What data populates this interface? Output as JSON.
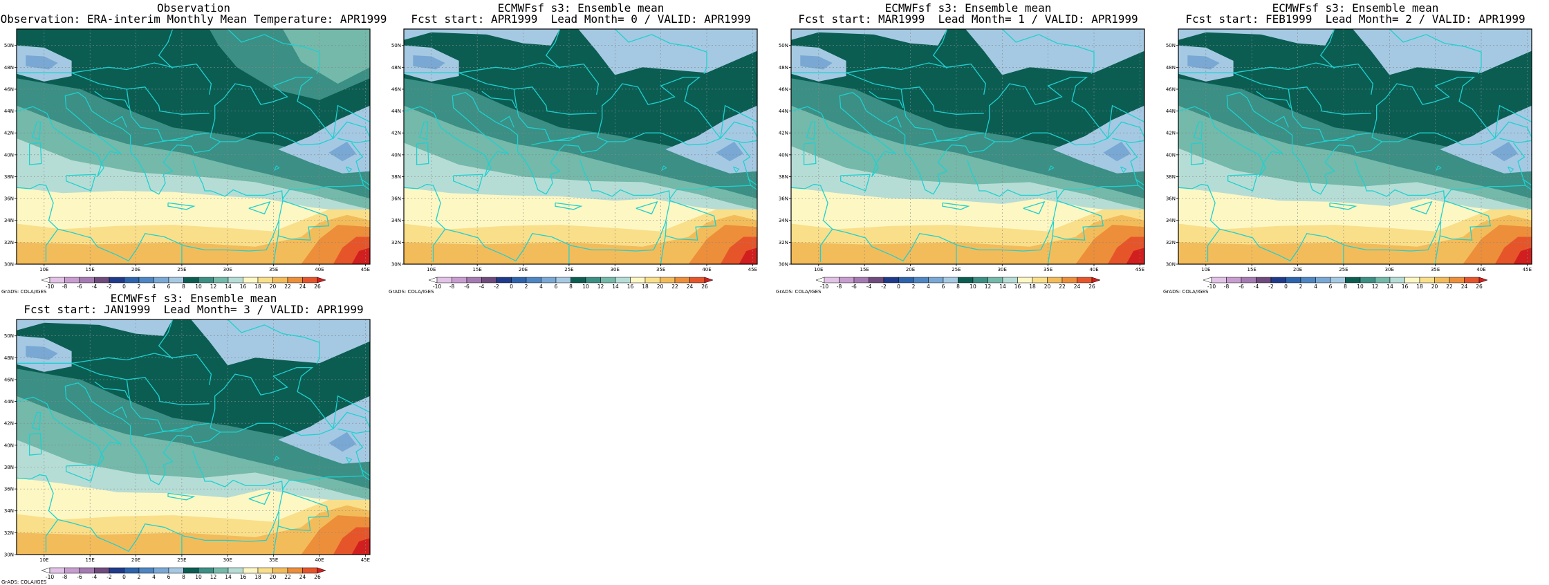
{
  "panels": [
    {
      "title1": "Observation",
      "title2": "Observation: ERA-interim Monthly Mean Temperature: APR1999",
      "variant": 0
    },
    {
      "title1": "ECMWFsf s3: Ensemble mean",
      "title2": "Fcst start: APR1999  Lead Month= 0 / VALID: APR1999",
      "variant": 1
    },
    {
      "title1": "ECMWFsf s3: Ensemble mean",
      "title2": "Fcst start: MAR1999  Lead Month= 1 / VALID: APR1999",
      "variant": 2
    },
    {
      "title1": "ECMWFsf s3: Ensemble mean",
      "title2": "Fcst start: FEB1999  Lead Month= 2 / VALID: APR1999",
      "variant": 3
    },
    {
      "title1": "ECMWFsf s3: Ensemble mean",
      "title2": "Fcst start: JAN1999  Lead Month= 3 / VALID: APR1999",
      "variant": 4
    }
  ],
  "lon_labels": [
    "10E",
    "15E",
    "20E",
    "25E",
    "30E",
    "35E",
    "40E",
    "45E"
  ],
  "lat_labels": [
    "30N",
    "32N",
    "34N",
    "36N",
    "38N",
    "40N",
    "42N",
    "44N",
    "46N",
    "48N",
    "50N"
  ],
  "colorbar": {
    "labels": [
      "-10",
      "-8",
      "-6",
      "-4",
      "-2",
      "0",
      "2",
      "4",
      "6",
      "8",
      "10",
      "12",
      "14",
      "16",
      "18",
      "20",
      "22",
      "24",
      "26"
    ],
    "colors": [
      "#ffffff",
      "#e2c2e6",
      "#c79ccf",
      "#a57ab3",
      "#6e4a7d",
      "#1f3a8a",
      "#2c63ab",
      "#4d86c2",
      "#79a8d4",
      "#a5c9e3",
      "#0b5d52",
      "#3b8f84",
      "#74b9aa",
      "#b6ddd5",
      "#fdf7c3",
      "#f9df8a",
      "#f3bc5a",
      "#ec8e3a",
      "#e6552a",
      "#d11f1f"
    ]
  },
  "credit": "GrADS: COLA/IGES",
  "colors": {
    "coast": "#1fd0d0",
    "grid": "#888888"
  }
}
